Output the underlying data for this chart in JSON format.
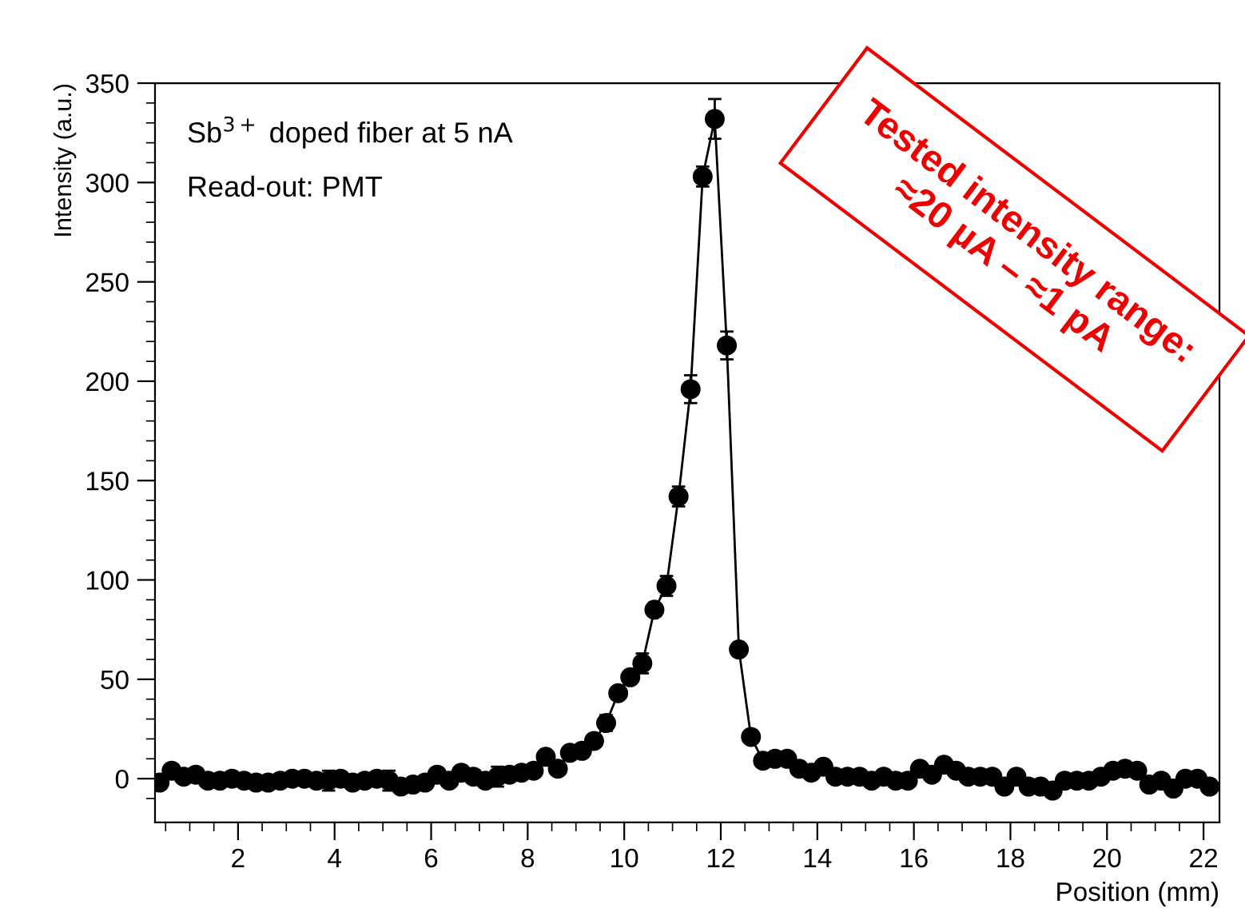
{
  "chart_data": {
    "type": "line",
    "xlabel": "Position (mm)",
    "ylabel": "Intensity (a.u.)",
    "x": [
      0.375,
      0.625,
      0.875,
      1.125,
      1.375,
      1.625,
      1.875,
      2.125,
      2.375,
      2.625,
      2.875,
      3.125,
      3.375,
      3.625,
      3.875,
      4.125,
      4.375,
      4.625,
      4.875,
      5.125,
      5.375,
      5.625,
      5.875,
      6.125,
      6.375,
      6.625,
      6.875,
      7.125,
      7.375,
      7.625,
      7.875,
      8.125,
      8.375,
      8.625,
      8.875,
      9.125,
      9.375,
      9.625,
      9.875,
      10.125,
      10.375,
      10.625,
      10.875,
      11.125,
      11.375,
      11.625,
      11.875,
      12.125,
      12.375,
      12.625,
      12.875,
      13.125,
      13.375,
      13.625,
      13.875,
      14.125,
      14.375,
      14.625,
      14.875,
      15.125,
      15.375,
      15.625,
      15.875,
      16.125,
      16.375,
      16.625,
      16.875,
      17.125,
      17.375,
      17.625,
      17.875,
      18.125,
      18.375,
      18.625,
      18.875,
      19.125,
      19.375,
      19.625,
      19.875,
      20.125,
      20.375,
      20.625,
      20.875,
      21.125,
      21.375,
      21.625,
      21.875,
      22.125
    ],
    "series": [
      {
        "color": "#000000",
        "values": [
          -2,
          4,
          1,
          2,
          -1,
          -1,
          0,
          -1,
          -2,
          -2,
          -1,
          0,
          0,
          -1,
          -1,
          0,
          -2,
          -1,
          0,
          -1,
          -4,
          -3,
          -2,
          2,
          -1,
          3,
          1,
          -1,
          1,
          2,
          3,
          4,
          11,
          5,
          13,
          14,
          19,
          28,
          43,
          51,
          58,
          85,
          97,
          142,
          196,
          303,
          332,
          218,
          65,
          21,
          9,
          10,
          10,
          5,
          3,
          6,
          1,
          1,
          1,
          -1,
          1,
          -1,
          -1,
          5,
          2,
          7,
          4,
          1,
          1,
          1,
          -4,
          1,
          -4,
          -4,
          -6,
          -1,
          -1,
          -1,
          1,
          4,
          5,
          4,
          -3,
          -1,
          -5,
          0,
          0,
          -4
        ],
        "errors": [
          null,
          null,
          null,
          null,
          null,
          null,
          null,
          null,
          null,
          null,
          null,
          null,
          null,
          null,
          5,
          null,
          null,
          null,
          null,
          5,
          null,
          null,
          null,
          null,
          null,
          null,
          null,
          null,
          5,
          null,
          null,
          null,
          null,
          null,
          null,
          null,
          null,
          4,
          null,
          null,
          5,
          null,
          5,
          5,
          7,
          5,
          10,
          7,
          null,
          null,
          null,
          null,
          null,
          null,
          null,
          null,
          null,
          null,
          null,
          null,
          null,
          null,
          null,
          null,
          null,
          null,
          null,
          null,
          null,
          null,
          null,
          null,
          null,
          null,
          null,
          null,
          null,
          null,
          null,
          null,
          null,
          null,
          null,
          null,
          null,
          null,
          null,
          null
        ]
      }
    ],
    "marker": "circle",
    "line_style": "solid",
    "grid": false,
    "xlim": [
      0.28,
      22.33
    ],
    "ylim": [
      -22,
      350
    ],
    "xticks": [
      {
        "value": 0.5,
        "label": null
      },
      {
        "value": 1,
        "label": null
      },
      {
        "value": 1.5,
        "label": null
      },
      2,
      {
        "value": 2.5,
        "label": null
      },
      {
        "value": 3,
        "label": null
      },
      {
        "value": 3.5,
        "label": null
      },
      4,
      {
        "value": 4.5,
        "label": null
      },
      {
        "value": 5,
        "label": null
      },
      {
        "value": 5.5,
        "label": null
      },
      6,
      {
        "value": 6.5,
        "label": null
      },
      {
        "value": 7,
        "label": null
      },
      {
        "value": 7.5,
        "label": null
      },
      8,
      {
        "value": 8.5,
        "label": null
      },
      {
        "value": 9,
        "label": null
      },
      {
        "value": 9.5,
        "label": null
      },
      10,
      {
        "value": 10.5,
        "label": null
      },
      {
        "value": 11,
        "label": null
      },
      {
        "value": 11.5,
        "label": null
      },
      12,
      {
        "value": 12.5,
        "label": null
      },
      {
        "value": 13,
        "label": null
      },
      {
        "value": 13.5,
        "label": null
      },
      14,
      {
        "value": 14.5,
        "label": null
      },
      {
        "value": 15,
        "label": null
      },
      {
        "value": 15.5,
        "label": null
      },
      16,
      {
        "value": 16.5,
        "label": null
      },
      {
        "value": 17,
        "label": null
      },
      {
        "value": 17.5,
        "label": null
      },
      18,
      {
        "value": 18.5,
        "label": null
      },
      {
        "value": 19,
        "label": null
      },
      {
        "value": 19.5,
        "label": null
      },
      20,
      {
        "value": 20.5,
        "label": null
      },
      {
        "value": 21,
        "label": null
      },
      {
        "value": 21.5,
        "label": null
      },
      22
    ],
    "yticks": [
      {
        "value": -10,
        "label": null
      },
      0,
      {
        "value": 10,
        "label": null
      },
      {
        "value": 20,
        "label": null
      },
      {
        "value": 30,
        "label": null
      },
      {
        "value": 40,
        "label": null
      },
      50,
      {
        "value": 60,
        "label": null
      },
      {
        "value": 70,
        "label": null
      },
      {
        "value": 80,
        "label": null
      },
      {
        "value": 90,
        "label": null
      },
      100,
      {
        "value": 110,
        "label": null
      },
      {
        "value": 120,
        "label": null
      },
      {
        "value": 130,
        "label": null
      },
      {
        "value": 140,
        "label": null
      },
      150,
      {
        "value": 160,
        "label": null
      },
      {
        "value": 170,
        "label": null
      },
      {
        "value": 180,
        "label": null
      },
      {
        "value": 190,
        "label": null
      },
      200,
      {
        "value": 210,
        "label": null
      },
      {
        "value": 220,
        "label": null
      },
      {
        "value": 230,
        "label": null
      },
      {
        "value": 240,
        "label": null
      },
      250,
      {
        "value": 260,
        "label": null
      },
      {
        "value": 270,
        "label": null
      },
      {
        "value": 280,
        "label": null
      },
      {
        "value": 290,
        "label": null
      },
      300,
      {
        "value": 310,
        "label": null
      },
      {
        "value": 320,
        "label": null
      },
      {
        "value": 330,
        "label": null
      },
      {
        "value": 340,
        "label": null
      },
      350
    ],
    "annotations": [
      "Sb$^{3+}$ doped fiber at 5 nA",
      "Read-out: PMT",
      "Tested intensity range:\n≈20 µA – ≈1 pA"
    ]
  }
}
